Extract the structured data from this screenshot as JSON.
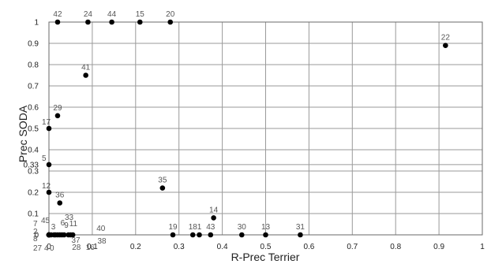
{
  "chart_data": {
    "type": "scatter",
    "title": "",
    "xlabel": "R-Prec Terrier",
    "ylabel": "Prec SODA",
    "xlim": [
      0,
      1
    ],
    "ylim": [
      0,
      1
    ],
    "x_ticks": [
      "0",
      "0.1",
      "0.2",
      "0.3",
      "0.4",
      "0.5",
      "0.6",
      "0.7",
      "0.8",
      "0.9",
      "1"
    ],
    "y_ticks": [
      "0",
      "0.1",
      "0.2",
      "0.3",
      "0.4",
      "0.5",
      "0.6",
      "0.7",
      "0.8",
      "0.9",
      "1"
    ],
    "extra_y_ticks": [
      "0.33"
    ],
    "grid": true,
    "point_color": "#000000",
    "points": [
      {
        "label": "42",
        "x": 0.02,
        "y": 1.0
      },
      {
        "label": "24",
        "x": 0.09,
        "y": 1.0
      },
      {
        "label": "44",
        "x": 0.145,
        "y": 1.0
      },
      {
        "label": "15",
        "x": 0.21,
        "y": 1.0
      },
      {
        "label": "20",
        "x": 0.28,
        "y": 1.0
      },
      {
        "label": "22",
        "x": 0.915,
        "y": 0.89
      },
      {
        "label": "41",
        "x": 0.085,
        "y": 0.75
      },
      {
        "label": "29",
        "x": 0.02,
        "y": 0.56
      },
      {
        "label": "17",
        "x": 0.0,
        "y": 0.5
      },
      {
        "label": "5",
        "x": 0.0,
        "y": 0.33
      },
      {
        "label": "35",
        "x": 0.262,
        "y": 0.22
      },
      {
        "label": "12",
        "x": 0.0,
        "y": 0.2
      },
      {
        "label": "36",
        "x": 0.025,
        "y": 0.15
      },
      {
        "label": "14",
        "x": 0.38,
        "y": 0.08
      },
      {
        "label": "19",
        "x": 0.286,
        "y": 0.0
      },
      {
        "label": "18",
        "x": 0.332,
        "y": 0.0
      },
      {
        "label": "1",
        "x": 0.347,
        "y": 0.0
      },
      {
        "label": "43",
        "x": 0.373,
        "y": 0.0
      },
      {
        "label": "30",
        "x": 0.445,
        "y": 0.0
      },
      {
        "label": "13",
        "x": 0.5,
        "y": 0.0
      },
      {
        "label": "31",
        "x": 0.58,
        "y": 0.0
      },
      {
        "label": "40",
        "x": 0.055,
        "y": 0.0
      },
      {
        "label": "38",
        "x": 0.05,
        "y": 0.0
      },
      {
        "label": "16",
        "x": 0.045,
        "y": 0.0
      },
      {
        "label": "28",
        "x": 0.035,
        "y": 0.0
      },
      {
        "label": "37",
        "x": 0.03,
        "y": 0.0
      },
      {
        "label": "33",
        "x": 0.02,
        "y": 0.0
      },
      {
        "label": "11",
        "x": 0.025,
        "y": 0.0
      },
      {
        "label": "9",
        "x": 0.015,
        "y": 0.0
      },
      {
        "label": "6",
        "x": 0.012,
        "y": 0.0
      },
      {
        "label": "3",
        "x": 0.005,
        "y": 0.0
      },
      {
        "label": "45",
        "x": 0.0,
        "y": 0.0
      },
      {
        "label": "7",
        "x": 0.0,
        "y": 0.0
      },
      {
        "label": "2",
        "x": 0.0,
        "y": 0.0
      },
      {
        "label": "8",
        "x": 0.0,
        "y": 0.0
      },
      {
        "label": "27",
        "x": 0.0,
        "y": 0.0
      },
      {
        "label": "4",
        "x": 0.0,
        "y": 0.0
      },
      {
        "label": "0",
        "x": 0.0,
        "y": 0.0
      }
    ]
  }
}
